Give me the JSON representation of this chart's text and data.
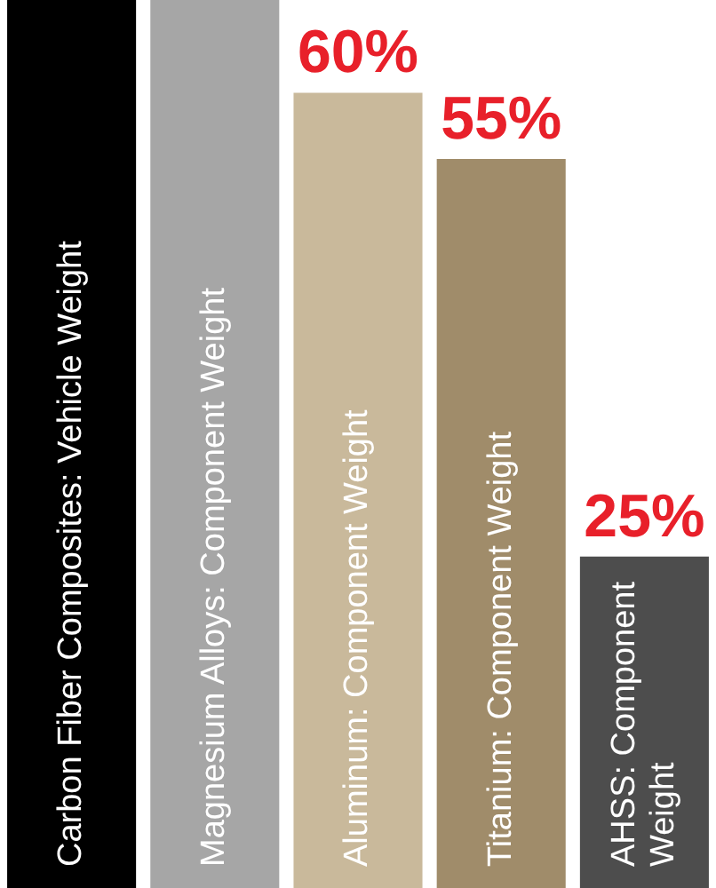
{
  "chart_data": {
    "type": "bar",
    "categories": [
      "Carbon Fiber Composites: Vehicle Weight",
      "Magnesium Alloys: Component Weight",
      "Aluminum: Component Weight",
      "Titanium: Component Weight",
      "AHSS: Component Weight"
    ],
    "values": [
      67,
      67,
      60,
      55,
      25
    ],
    "colors": [
      "#000000",
      "#a6a6a6",
      "#c9b99b",
      "#a08c6a",
      "#4d4d4d"
    ],
    "value_labels": [
      null,
      null,
      "60%",
      "55%",
      "25%"
    ],
    "ylim": [
      0,
      67
    ]
  }
}
